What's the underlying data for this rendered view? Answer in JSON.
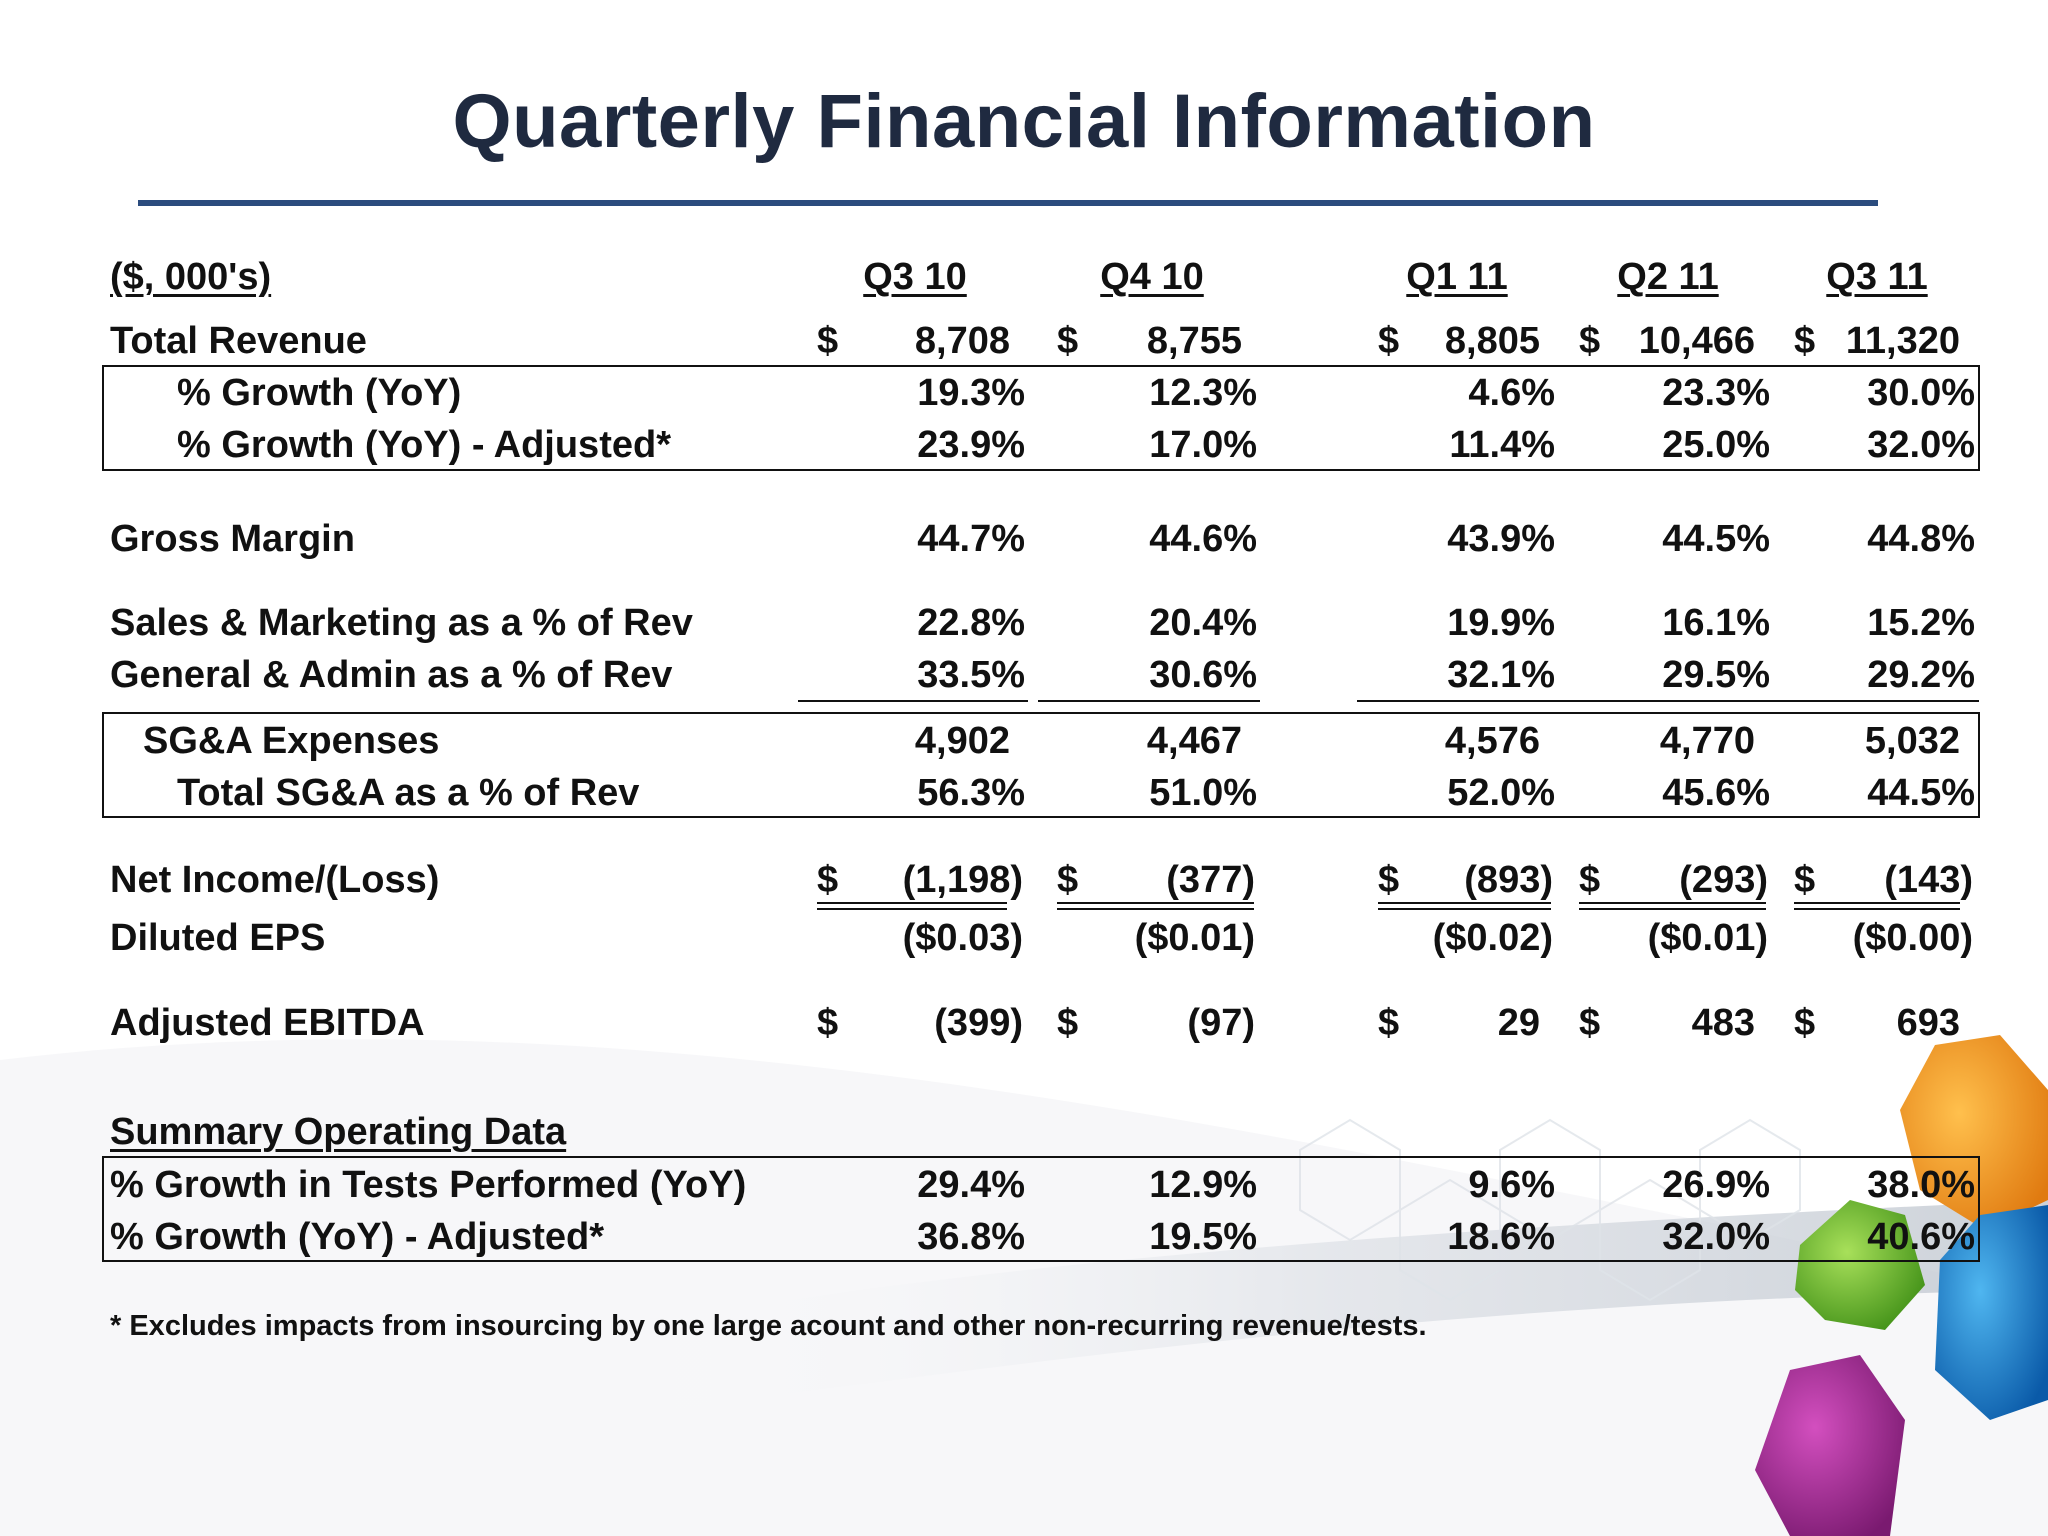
{
  "title": "Quarterly Financial Information",
  "table": {
    "units_label": "($, 000's)",
    "columns": [
      "Q3 10",
      "Q4 10",
      "Q1 11",
      "Q2 11",
      "Q3 11"
    ],
    "currency_symbol": "$",
    "rows": {
      "total_revenue": {
        "label": "Total Revenue",
        "values": [
          "8,708",
          "8,755",
          "8,805",
          "10,466",
          "11,320"
        ]
      },
      "growth_yoy": {
        "label": "% Growth (YoY)",
        "values": [
          "19.3%",
          "12.3%",
          "4.6%",
          "23.3%",
          "30.0%"
        ]
      },
      "growth_yoy_adj": {
        "label": "% Growth (YoY) - Adjusted*",
        "values": [
          "23.9%",
          "17.0%",
          "11.4%",
          "25.0%",
          "32.0%"
        ]
      },
      "gross_margin": {
        "label": "Gross Margin",
        "values": [
          "44.7%",
          "44.6%",
          "43.9%",
          "44.5%",
          "44.8%"
        ]
      },
      "sales_marketing": {
        "label": "Sales & Marketing as a % of Rev",
        "values": [
          "22.8%",
          "20.4%",
          "19.9%",
          "16.1%",
          "15.2%"
        ]
      },
      "general_admin": {
        "label": "General & Admin as a % of Rev",
        "values": [
          "33.5%",
          "30.6%",
          "32.1%",
          "29.5%",
          "29.2%"
        ]
      },
      "sga_expenses": {
        "label": "SG&A Expenses",
        "values": [
          "4,902",
          "4,467",
          "4,576",
          "4,770",
          "5,032"
        ]
      },
      "total_sga": {
        "label": "Total SG&A as a % of Rev",
        "values": [
          "56.3%",
          "51.0%",
          "52.0%",
          "45.6%",
          "44.5%"
        ]
      },
      "net_income": {
        "label": "Net Income/(Loss)",
        "values": [
          "(1,198)",
          "(377)",
          "(893)",
          "(293)",
          "(143)"
        ]
      },
      "diluted_eps": {
        "label": "Diluted EPS",
        "values": [
          "($0.03)",
          "($0.01)",
          "($0.02)",
          "($0.01)",
          "($0.00)"
        ]
      },
      "adj_ebitda": {
        "label": "Adjusted EBITDA",
        "values": [
          "(399)",
          "(97)",
          "29",
          "483",
          "693"
        ]
      }
    },
    "summary": {
      "heading": "Summary Operating Data",
      "tests_growth": {
        "label": "% Growth in Tests Performed (YoY)",
        "values": [
          "29.4%",
          "12.9%",
          "9.6%",
          "26.9%",
          "38.0%"
        ]
      },
      "tests_growth_adj": {
        "label": "% Growth (YoY) - Adjusted*",
        "values": [
          "36.8%",
          "19.5%",
          "18.6%",
          "32.0%",
          "40.6%"
        ]
      }
    }
  },
  "footnote": "* Excludes impacts from insourcing by one large acount and other non-recurring revenue/tests.",
  "colors": {
    "title": "#1f2a40",
    "rule": "#2b4c7e"
  }
}
